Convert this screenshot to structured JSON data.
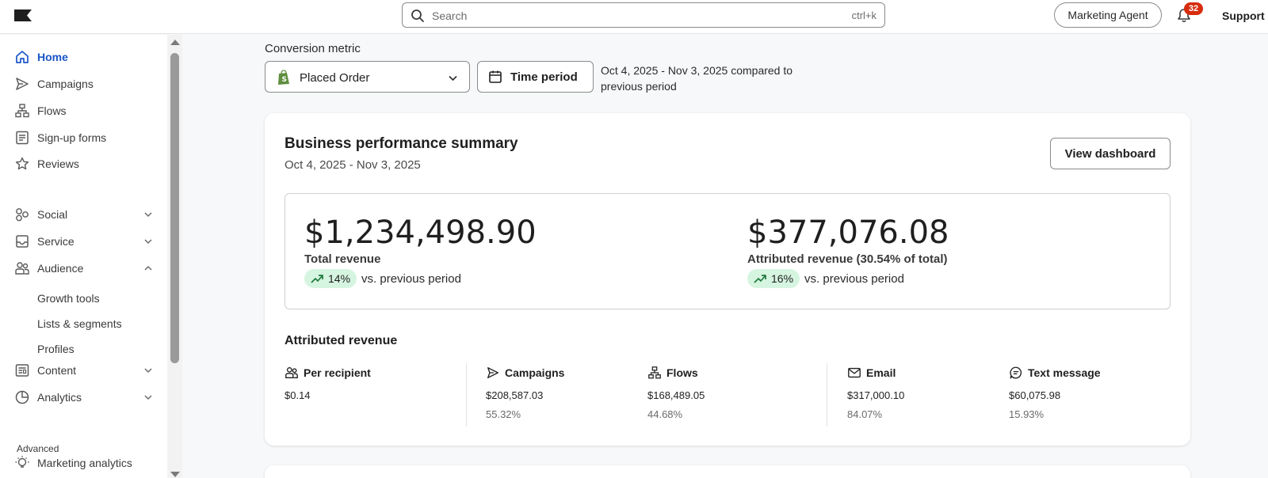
{
  "topbar": {
    "search_placeholder": "Search",
    "search_shortcut": "ctrl+k",
    "agent_button": "Marketing Agent",
    "notification_count": "32",
    "support_label": "Support"
  },
  "sidebar": {
    "items": [
      {
        "label": "Home",
        "icon": "home-icon",
        "active": true
      },
      {
        "label": "Campaigns",
        "icon": "send-icon"
      },
      {
        "label": "Flows",
        "icon": "flows-icon"
      },
      {
        "label": "Sign-up forms",
        "icon": "form-icon"
      },
      {
        "label": "Reviews",
        "icon": "star-icon"
      },
      {
        "label": "Social",
        "icon": "social-icon",
        "expandable": true
      },
      {
        "label": "Service",
        "icon": "inbox-icon",
        "expandable": true
      },
      {
        "label": "Audience",
        "icon": "people-icon",
        "expanded": true
      },
      {
        "label": "Content",
        "icon": "content-icon",
        "expandable": true
      },
      {
        "label": "Analytics",
        "icon": "pie-chart-icon",
        "expandable": true
      }
    ],
    "audience_sub": [
      "Growth tools",
      "Lists & segments",
      "Profiles"
    ],
    "advanced_label": "Advanced",
    "advanced_item": "Marketing analytics"
  },
  "filters": {
    "conversion_label": "Conversion metric",
    "metric_value": "Placed Order",
    "time_button": "Time period",
    "period_text": "Oct 4, 2025 - Nov 3, 2025 compared to previous period"
  },
  "summary": {
    "title": "Business performance summary",
    "date_range": "Oct 4, 2025 - Nov 3, 2025",
    "view_button": "View dashboard",
    "total": {
      "amount": "$1,234,498.90",
      "label": "Total revenue",
      "change": "14%",
      "comparison": "vs. previous period"
    },
    "attributed": {
      "amount": "$377,076.08",
      "label": "Attributed revenue (30.54% of total)",
      "change": "16%",
      "comparison": "vs. previous period"
    }
  },
  "attributed_section": {
    "title": "Attributed revenue",
    "columns": [
      {
        "label": "Per recipient",
        "value": "$0.14",
        "pct": "",
        "icon": "people-icon"
      },
      {
        "label": "Campaigns",
        "value": "$208,587.03",
        "pct": "55.32%",
        "icon": "send-icon"
      },
      {
        "label": "Flows",
        "value": "$168,489.05",
        "pct": "44.68%",
        "icon": "flows-icon"
      },
      {
        "label": "Email",
        "value": "$317,000.10",
        "pct": "84.07%",
        "icon": "mail-icon"
      },
      {
        "label": "Text message",
        "value": "$60,075.98",
        "pct": "15.93%",
        "icon": "message-icon"
      }
    ]
  },
  "colors": {
    "accent": "#1a56c8",
    "positive_bg": "#d6f5e0",
    "positive_fg": "#1f7a3f",
    "badge": "#d72c0d"
  }
}
